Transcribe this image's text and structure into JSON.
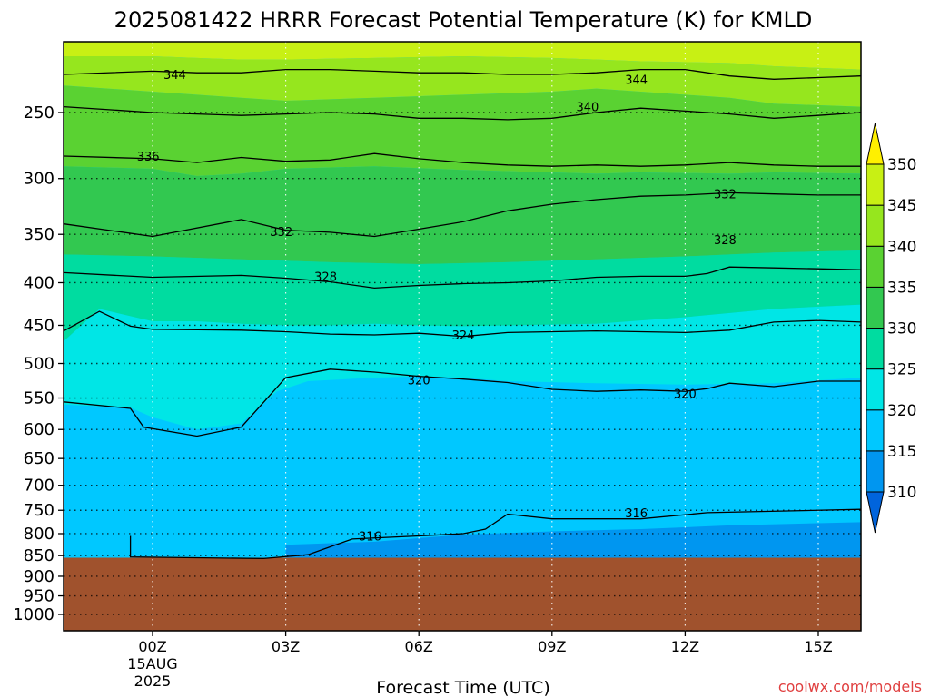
{
  "chart_data": {
    "type": "heatmap",
    "subtype": "time-pressure cross-section (filled contours)",
    "title": "2025081422 HRRR Forecast Potential Temperature (K) for KMLD",
    "xlabel": "Forecast Time (UTC)",
    "ylabel": "",
    "credit": "coolwx.com/models",
    "x_ticks": [
      {
        "hour": 0,
        "label": "00Z"
      },
      {
        "hour": 3,
        "label": "03Z"
      },
      {
        "hour": 6,
        "label": "06Z"
      },
      {
        "hour": 9,
        "label": "09Z"
      },
      {
        "hour": 12,
        "label": "12Z"
      },
      {
        "hour": 15,
        "label": "15Z"
      }
    ],
    "x_date_label_1": "15AUG",
    "x_date_label_2": "2025",
    "xlim_hours": [
      -2,
      16
    ],
    "y_axis": "pressure (hPa), inverted, log scale",
    "ylim_hpa": [
      1050,
      200
    ],
    "y_ticks": [
      250,
      300,
      350,
      400,
      450,
      500,
      550,
      600,
      650,
      700,
      750,
      800,
      850,
      900,
      950,
      1000
    ],
    "grid": "dotted",
    "ground_top_hpa": 855,
    "ground_color": "#a0522d",
    "colorbar": {
      "levels": [
        310,
        315,
        320,
        325,
        330,
        335,
        340,
        345,
        350
      ],
      "colors": [
        "#0064dc",
        "#0096f0",
        "#00c8ff",
        "#00e6e6",
        "#00dca0",
        "#32c850",
        "#5ad232",
        "#96e61e",
        "#c8f014",
        "#fff000"
      ],
      "extend": "both"
    },
    "contours": [
      {
        "value": 316,
        "points": [
          [
            -0.5,
            805
          ],
          [
            -0.5,
            853
          ],
          [
            2.5,
            857
          ],
          [
            3.5,
            848
          ],
          [
            4.5,
            812
          ],
          [
            6,
            805
          ],
          [
            7,
            800
          ],
          [
            7.5,
            790
          ],
          [
            8,
            758
          ],
          [
            9,
            768
          ],
          [
            11,
            768
          ],
          [
            12.5,
            755
          ],
          [
            16,
            748
          ]
        ]
      },
      {
        "value": 320,
        "points": [
          [
            -2,
            556
          ],
          [
            -0.5,
            566
          ],
          [
            -0.2,
            596
          ],
          [
            1,
            611
          ],
          [
            2,
            596
          ],
          [
            3,
            520
          ],
          [
            4,
            508
          ],
          [
            5,
            512
          ],
          [
            6,
            518
          ],
          [
            7,
            522
          ],
          [
            8,
            527
          ],
          [
            9,
            537
          ],
          [
            10,
            540
          ],
          [
            11,
            538
          ],
          [
            12,
            540
          ],
          [
            12.5,
            536
          ],
          [
            13,
            528
          ],
          [
            14,
            533
          ],
          [
            15,
            525
          ],
          [
            16,
            525
          ]
        ]
      },
      {
        "value": 324,
        "points": [
          [
            -2,
            457
          ],
          [
            -1.2,
            433
          ],
          [
            -0.5,
            451
          ],
          [
            0,
            455
          ],
          [
            2,
            456
          ],
          [
            3,
            458
          ],
          [
            4,
            461
          ],
          [
            5,
            462
          ],
          [
            6,
            460
          ],
          [
            7,
            464
          ],
          [
            8,
            459
          ],
          [
            9,
            458
          ],
          [
            10,
            457
          ],
          [
            11,
            458
          ],
          [
            12,
            459
          ],
          [
            13,
            456
          ],
          [
            14,
            446
          ],
          [
            15,
            444
          ],
          [
            16,
            446
          ]
        ]
      },
      {
        "value": 328,
        "points": [
          [
            -2,
            389
          ],
          [
            0,
            394
          ],
          [
            2,
            392
          ],
          [
            3,
            395
          ],
          [
            4,
            399
          ],
          [
            5,
            406
          ],
          [
            6,
            403
          ],
          [
            7,
            401
          ],
          [
            8,
            400
          ],
          [
            9,
            398
          ],
          [
            10,
            394
          ],
          [
            11,
            393
          ],
          [
            12,
            393
          ],
          [
            12.5,
            390
          ],
          [
            13,
            383
          ],
          [
            14,
            384
          ],
          [
            15,
            385
          ],
          [
            16,
            386
          ]
        ]
      },
      {
        "value": 332,
        "points": [
          [
            -2,
            340
          ],
          [
            0,
            352
          ],
          [
            2,
            336
          ],
          [
            3,
            346
          ],
          [
            4,
            348
          ],
          [
            5,
            352
          ],
          [
            6,
            345
          ],
          [
            7,
            338
          ],
          [
            8,
            328
          ],
          [
            9,
            322
          ],
          [
            10,
            318
          ],
          [
            11,
            315
          ],
          [
            12,
            314
          ],
          [
            13,
            312
          ],
          [
            14,
            313
          ],
          [
            15,
            314
          ],
          [
            16,
            314
          ]
        ]
      },
      {
        "value": 336,
        "points": [
          [
            -2,
            282
          ],
          [
            0,
            284
          ],
          [
            1,
            287
          ],
          [
            2,
            283
          ],
          [
            3,
            286
          ],
          [
            4,
            285
          ],
          [
            5,
            280
          ],
          [
            6,
            284
          ],
          [
            7,
            287
          ],
          [
            8,
            289
          ],
          [
            9,
            290
          ],
          [
            10,
            289
          ],
          [
            11,
            290
          ],
          [
            12,
            289
          ],
          [
            13,
            287
          ],
          [
            14,
            289
          ],
          [
            15,
            290
          ],
          [
            16,
            290
          ]
        ]
      },
      {
        "value": 340,
        "points": [
          [
            -2,
            246
          ],
          [
            0,
            250
          ],
          [
            1,
            251
          ],
          [
            2,
            252
          ],
          [
            3,
            251
          ],
          [
            4,
            250
          ],
          [
            5,
            251
          ],
          [
            6,
            254
          ],
          [
            7,
            254
          ],
          [
            8,
            255
          ],
          [
            9,
            254
          ],
          [
            10,
            250
          ],
          [
            11,
            247
          ],
          [
            12,
            249
          ],
          [
            13,
            251
          ],
          [
            14,
            254
          ],
          [
            15,
            252
          ],
          [
            16,
            250
          ]
        ]
      },
      {
        "value": 344,
        "points": [
          [
            -2,
            225
          ],
          [
            0,
            223
          ],
          [
            1,
            224
          ],
          [
            2,
            224
          ],
          [
            3,
            222
          ],
          [
            4,
            222
          ],
          [
            5,
            223
          ],
          [
            6,
            224
          ],
          [
            7,
            224
          ],
          [
            8,
            225
          ],
          [
            9,
            225
          ],
          [
            10,
            224
          ],
          [
            11,
            222
          ],
          [
            12,
            222
          ],
          [
            13,
            226
          ],
          [
            14,
            228
          ],
          [
            15,
            227
          ],
          [
            16,
            226
          ]
        ]
      }
    ],
    "contour_labels": [
      {
        "text": "344",
        "hour": 0.5,
        "hpa": 225
      },
      {
        "text": "344",
        "hour": 10.9,
        "hpa": 228
      },
      {
        "text": "340",
        "hour": 9.8,
        "hpa": 246
      },
      {
        "text": "336",
        "hour": -0.1,
        "hpa": 282
      },
      {
        "text": "332",
        "hour": 12.9,
        "hpa": 313
      },
      {
        "text": "332",
        "hour": 2.9,
        "hpa": 347
      },
      {
        "text": "328",
        "hour": 12.9,
        "hpa": 355
      },
      {
        "text": "328",
        "hour": 3.9,
        "hpa": 393
      },
      {
        "text": "324",
        "hour": 7,
        "hpa": 462
      },
      {
        "text": "320",
        "hour": 6,
        "hpa": 523
      },
      {
        "text": "320",
        "hour": 12,
        "hpa": 543
      },
      {
        "text": "316",
        "hour": 10.9,
        "hpa": 755
      },
      {
        "text": "316",
        "hour": 4.9,
        "hpa": 805
      }
    ],
    "fill_bands": [
      {
        "value": 312,
        "hour_from": 3,
        "hour_to": 16,
        "top_hpa": [
          825,
          818,
          802,
          795,
          790,
          782,
          775
        ],
        "top_hours": [
          3,
          5,
          7,
          9,
          11,
          13,
          16
        ]
      },
      {
        "value": 317,
        "base": true
      },
      {
        "value": 322,
        "hour_bounds": [
          -2,
          16
        ],
        "top_hpa": [
          470,
          430,
          445,
          445,
          448,
          450,
          450,
          448,
          450,
          451,
          450,
          448,
          440,
          430,
          425
        ],
        "top_hours": [
          -2,
          -1.2,
          0,
          1,
          2,
          3,
          4,
          5,
          6,
          7,
          8,
          10,
          12,
          14,
          16
        ],
        "bottom_hpa": [
          560,
          565,
          580,
          600,
          590,
          540,
          525,
          520,
          518,
          520,
          525,
          528,
          530,
          528,
          520
        ],
        "bottom_hours": [
          -2,
          -0.5,
          0,
          1,
          2,
          2.8,
          3.5,
          5,
          6,
          7,
          8,
          10,
          12,
          14,
          16
        ]
      },
      {
        "value": 327,
        "hour_bounds": [
          -2,
          16
        ],
        "top_hpa": [
          370,
          372,
          375,
          378,
          380,
          378,
          375,
          372,
          370,
          368,
          366
        ],
        "top_hours": [
          -2,
          0,
          2,
          4,
          6,
          8,
          10,
          12,
          13,
          14,
          16
        ],
        "bottom_hpa": [
          470,
          430,
          445,
          445,
          448,
          450,
          450,
          448,
          450,
          451,
          450,
          448,
          440,
          430,
          425
        ],
        "bottom_hours": [
          -2,
          -1.2,
          0,
          1,
          2,
          3,
          4,
          5,
          6,
          7,
          8,
          10,
          12,
          14,
          16
        ]
      },
      {
        "value": 332,
        "hour_bounds": [
          -2,
          16
        ],
        "top_hpa": [
          290,
          292,
          298,
          296,
          292,
          290,
          293,
          295,
          296,
          295,
          296,
          295,
          296
        ],
        "top_hours": [
          -2,
          0,
          1,
          2,
          3,
          5,
          7,
          9,
          10,
          11,
          13,
          14,
          16
        ],
        "bottom_hpa": [
          370,
          372,
          375,
          378,
          380,
          378,
          375,
          372,
          370,
          368,
          366
        ],
        "bottom_hours": [
          -2,
          0,
          2,
          4,
          6,
          8,
          10,
          12,
          13,
          14,
          16
        ]
      },
      {
        "value": 337,
        "hour_bounds": [
          -2,
          16
        ],
        "top_hpa": [
          232,
          236,
          238,
          240,
          242,
          240,
          238,
          236,
          234,
          236,
          240,
          244,
          246
        ],
        "top_hours": [
          -2,
          0,
          1,
          2,
          3,
          5,
          7,
          9,
          10,
          11,
          13,
          14,
          16
        ],
        "bottom_hpa": [
          290,
          292,
          298,
          296,
          292,
          290,
          293,
          295,
          296,
          295,
          296,
          295,
          296
        ],
        "bottom_hours": [
          -2,
          0,
          1,
          2,
          3,
          5,
          7,
          9,
          10,
          11,
          13,
          14,
          16
        ]
      },
      {
        "value": 342,
        "hour_bounds": [
          -2,
          16
        ],
        "top_hpa": [
          214,
          214,
          215,
          216,
          216,
          215,
          214,
          215,
          216,
          217,
          218,
          220,
          222
        ],
        "top_hours": [
          -2,
          0,
          1,
          2,
          3,
          5,
          7,
          9,
          10,
          11,
          13,
          14,
          16
        ],
        "bottom_hpa": [
          232,
          236,
          238,
          240,
          242,
          240,
          238,
          236,
          234,
          236,
          240,
          244,
          246
        ],
        "bottom_hours": [
          -2,
          0,
          1,
          2,
          3,
          5,
          7,
          9,
          10,
          11,
          13,
          14,
          16
        ]
      },
      {
        "value": 347,
        "hour_bounds": [
          -2,
          16
        ],
        "top_hpa": [
          200,
          200,
          200,
          200,
          200
        ],
        "top_hours": [
          -2,
          2,
          6,
          10,
          16
        ],
        "bottom_hpa": [
          214,
          214,
          215,
          216,
          216,
          215,
          214,
          215,
          216,
          217,
          218,
          220,
          222
        ],
        "bottom_hours": [
          -2,
          0,
          1,
          2,
          3,
          5,
          7,
          9,
          10,
          11,
          13,
          14,
          16
        ]
      }
    ]
  }
}
